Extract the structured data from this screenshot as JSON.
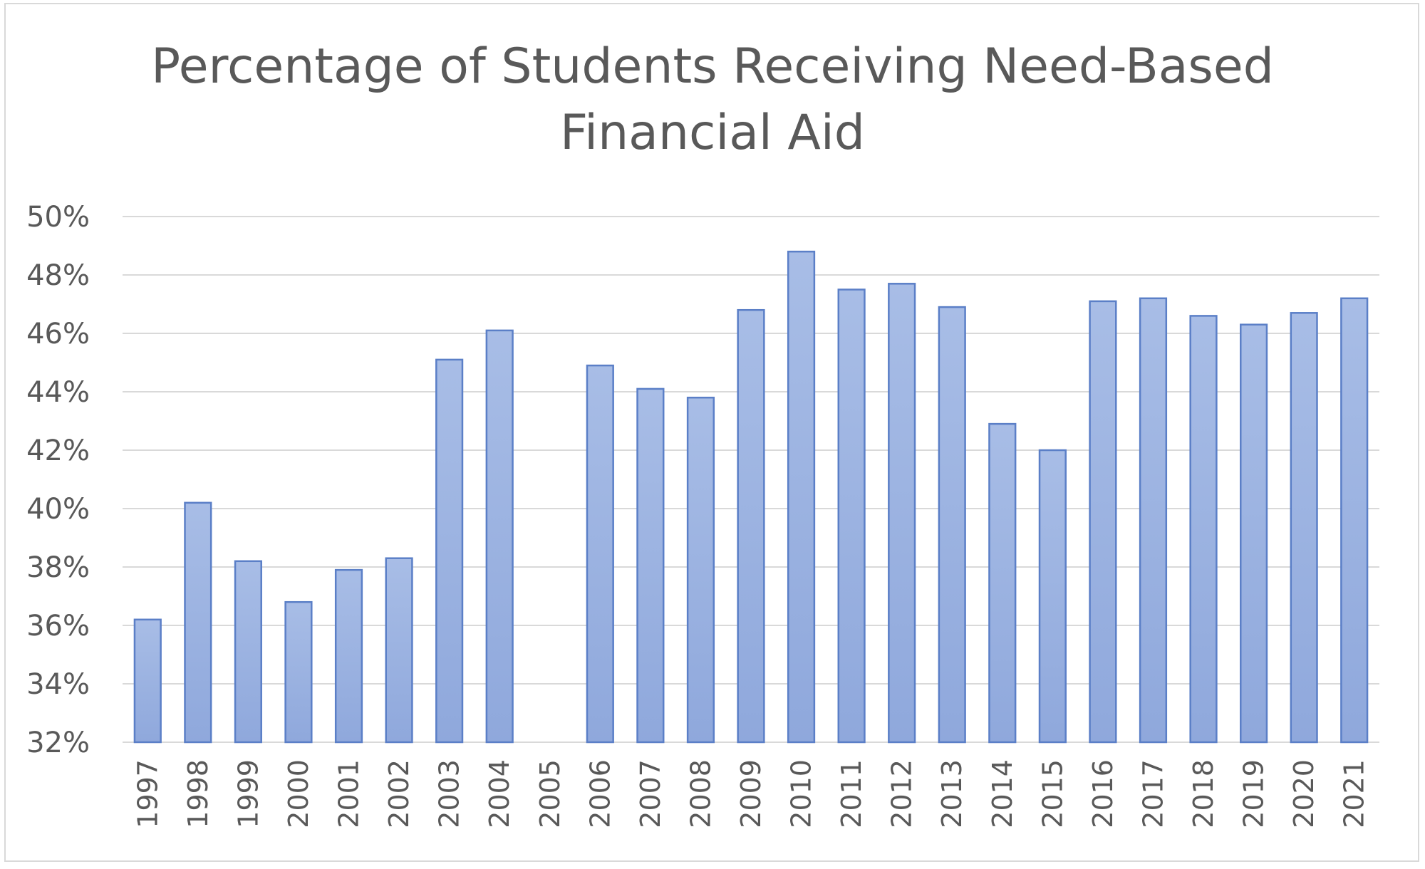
{
  "chart_data": {
    "type": "bar",
    "title": "Percentage of Students Receiving Need-Based Financial Aid",
    "title_lines": [
      "Percentage of Students Receiving Need-Based",
      "Financial Aid"
    ],
    "xlabel": "",
    "ylabel": "",
    "ylim": [
      32,
      50
    ],
    "y_ticks": [
      32,
      34,
      36,
      38,
      40,
      42,
      44,
      46,
      48,
      50
    ],
    "y_tick_labels": [
      "32%",
      "34%",
      "36%",
      "38%",
      "40%",
      "42%",
      "44%",
      "46%",
      "48%",
      "50%"
    ],
    "y_unit": "%",
    "grid": true,
    "legend": "none",
    "x_tick_orientation": "rotated-90",
    "bar_color": "#8fa8dc",
    "bar_border_color": "#5b7fc7",
    "categories": [
      "1997",
      "1998",
      "1999",
      "2000",
      "2001",
      "2002",
      "2003",
      "2004",
      "2005",
      "2006",
      "2007",
      "2008",
      "2009",
      "2010",
      "2011",
      "2012",
      "2013",
      "2014",
      "2015",
      "2016",
      "2017",
      "2018",
      "2019",
      "2020",
      "2021"
    ],
    "values": [
      36.2,
      40.2,
      38.2,
      36.8,
      37.9,
      38.3,
      45.1,
      46.1,
      null,
      44.9,
      44.1,
      43.8,
      46.8,
      48.8,
      47.5,
      47.7,
      46.9,
      42.9,
      42.0,
      47.1,
      47.2,
      46.6,
      46.3,
      46.7,
      47.2
    ]
  }
}
